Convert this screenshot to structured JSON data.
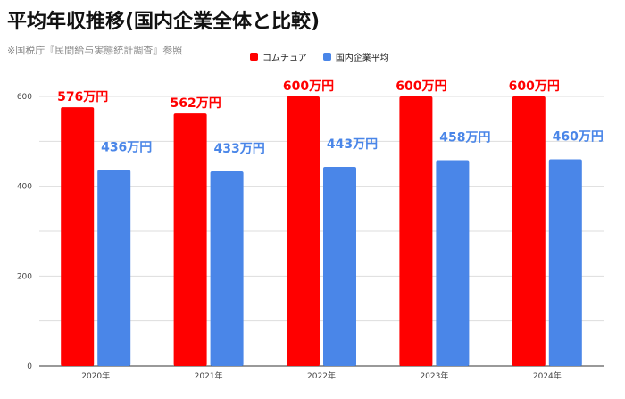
{
  "chart_data": {
    "type": "bar",
    "title": "平均年収推移(国内企業全体と比較)",
    "subtitle": "※国税庁『民間給与実態統計調査』参照",
    "categories": [
      "2020年",
      "2021年",
      "2022年",
      "2023年",
      "2024年"
    ],
    "series": [
      {
        "name": "コムチュア",
        "color": "#ff0000",
        "label_color": "#ff0000",
        "values": [
          576,
          562,
          600,
          600,
          600
        ],
        "labels": [
          "576万円",
          "562万円",
          "600万円",
          "600万円",
          "600万円"
        ]
      },
      {
        "name": "国内企業平均",
        "color": "#4a86e8",
        "label_color": "#4a86e8",
        "values": [
          436,
          433,
          443,
          458,
          460
        ],
        "labels": [
          "436万円",
          "433万円",
          "443万円",
          "458万円",
          "460万円"
        ]
      }
    ],
    "y_ticks": [
      0,
      200,
      400,
      600
    ],
    "ylim": [
      0,
      600
    ],
    "grid": true,
    "legend_position": "top-center"
  }
}
